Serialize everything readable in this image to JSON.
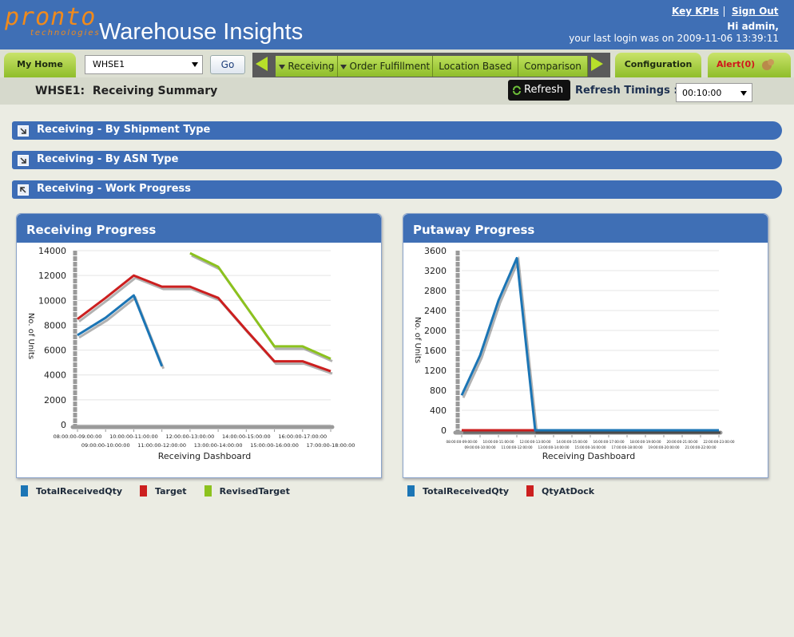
{
  "header": {
    "logo": "pronto",
    "logo_sub": "technologies",
    "title": "Warehouse Insights",
    "links": [
      "Key KPIs",
      "Sign Out"
    ],
    "greeting": "Hi admin,",
    "last_login": "your last login was on 2009-11-06 13:39:11"
  },
  "nav": {
    "my_home": "My Home",
    "warehouse": "WHSE1",
    "go": "Go",
    "tabs": [
      "Receiving",
      "Order Fulfillment",
      "Location Based",
      "Comparison"
    ],
    "configuration": "Configuration",
    "alert": "Alert(0)"
  },
  "summary": {
    "title": "WHSE1:  Receiving Summary",
    "refresh": "Refresh",
    "refresh_label": "Refresh Timings :",
    "refresh_value": "00:10:00"
  },
  "sections": [
    "Receiving - By Shipment Type",
    "Receiving - By ASN Type",
    "Receiving - Work Progress"
  ],
  "chart_data": [
    {
      "type": "line",
      "title": "Receiving Progress",
      "x_label": "Receiving Dashboard",
      "y_label": "No. of Units",
      "categories": [
        "08:00:00-09:00:00",
        "09:00:00-10:00:00",
        "10:00:00-11:00:00",
        "11:00:00-12:00:00",
        "12:00:00-13:00:00",
        "13:00:00-14:00:00",
        "14:00:00-15:00:00",
        "15:00:00-16:00:00",
        "16:00:00-17:00:00",
        "17:00:00-18:00:00"
      ],
      "series": [
        {
          "name": "TotalReceivedQty",
          "color": "#1b75b5",
          "values": [
            7200,
            8600,
            10400,
            4700,
            null,
            null,
            null,
            null,
            null,
            null
          ]
        },
        {
          "name": "Target",
          "color": "#cc1f1f",
          "values": [
            8500,
            10200,
            12000,
            11100,
            11100,
            10200,
            7600,
            5100,
            5100,
            4300
          ]
        },
        {
          "name": "RevisedTarget",
          "color": "#8cc21e",
          "values": [
            null,
            null,
            null,
            null,
            13800,
            12700,
            9500,
            6300,
            6300,
            5300
          ]
        }
      ],
      "ylim": [
        0,
        14000
      ],
      "yticks": [
        0,
        2000,
        4000,
        6000,
        8000,
        10000,
        12000,
        14000
      ],
      "grid": true
    },
    {
      "type": "line",
      "title": "Putaway Progress",
      "x_label": "Receiving Dashboard",
      "y_label": "No. of Units",
      "categories": [
        "08:00:00-09:00:00",
        "09:00:00-10:00:00",
        "10:00:00-11:00:00",
        "11:00:00-12:00:00",
        "12:00:00-13:00:00",
        "13:00:00-14:00:00",
        "14:00:00-15:00:00",
        "15:00:00-16:00:00",
        "16:00:00-17:00:00",
        "17:00:00-18:00:00",
        "18:00:00-19:00:00",
        "19:00:00-20:00:00",
        "20:00:00-21:00:00",
        "21:00:00-22:00:00",
        "22:00:00-23:00:00"
      ],
      "series": [
        {
          "name": "TotalReceivedQty",
          "color": "#1b75b5",
          "values": [
            700,
            1500,
            2600,
            3450,
            0,
            0,
            0,
            0,
            0,
            0,
            0,
            0,
            0,
            0,
            0
          ]
        },
        {
          "name": "QtyAtDock",
          "color": "#cc1f1f",
          "values": [
            0,
            0,
            0,
            0,
            0,
            0,
            0,
            0,
            0,
            0,
            0,
            0,
            0,
            0,
            0
          ]
        }
      ],
      "ylim": [
        0,
        3600
      ],
      "yticks": [
        0,
        400,
        800,
        1200,
        1600,
        2000,
        2400,
        2800,
        3200,
        3600
      ],
      "grid": true
    }
  ]
}
